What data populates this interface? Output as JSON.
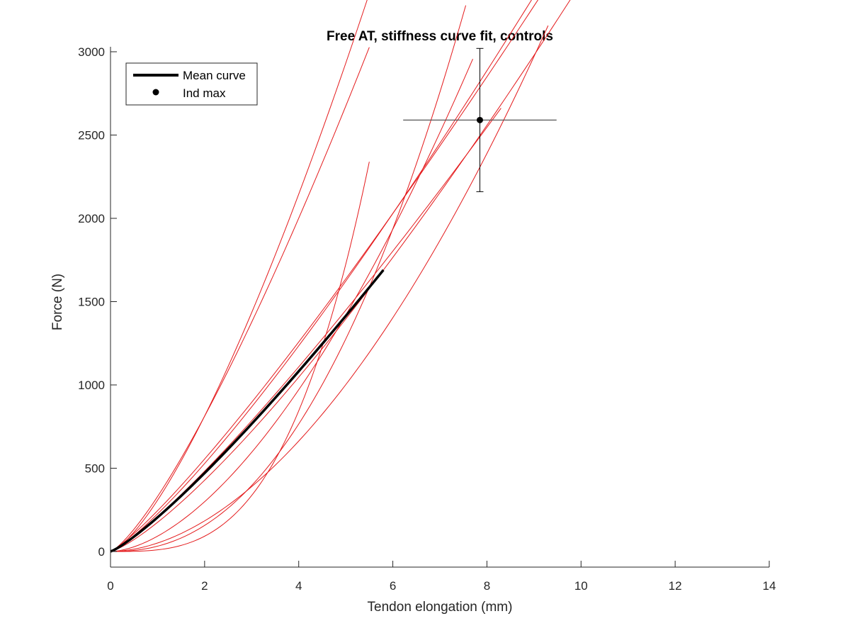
{
  "chart_data": {
    "type": "line",
    "title": "Free AT, stiffness curve fit, controls",
    "xlabel": "Tendon elongation (mm)",
    "ylabel": "Force (N)",
    "xlim": [
      0,
      14
    ],
    "ylim": [
      -100,
      3000
    ],
    "xticks": [
      "0",
      "2",
      "4",
      "6",
      "8",
      "10",
      "12",
      "14"
    ],
    "yticks": [
      "0",
      "500",
      "1000",
      "1500",
      "2000",
      "2500",
      "3000"
    ],
    "grid": false,
    "legend_position": "top-left",
    "legend": {
      "mean_label": "Mean curve",
      "max_label": "Ind max"
    },
    "colors": {
      "individual": "#e41a1c",
      "mean": "#000000",
      "errorbar": "#000000",
      "errorbar_h": "#555555",
      "axis": "#262626"
    },
    "individual_curves": [
      {
        "a": 32,
        "b": 2.29,
        "xmax": 7.55
      },
      {
        "a": 10,
        "b": 3.2,
        "xmax": 5.5
      },
      {
        "a": 330,
        "b": 1.3,
        "xmax": 5.5
      },
      {
        "a": 92,
        "b": 1.7,
        "xmax": 7.7
      },
      {
        "a": 245,
        "b": 1.18,
        "xmax": 9.6
      },
      {
        "a": 226,
        "b": 1.225,
        "xmax": 9.5
      },
      {
        "a": 175,
        "b": 1.29,
        "xmax": 10.15
      },
      {
        "a": 51,
        "b": 1.85,
        "xmax": 9.3
      },
      {
        "a": 308,
        "b": 1.4,
        "xmax": 7.65
      },
      {
        "a": 210,
        "b": 1.2,
        "xmax": 8.3
      }
    ],
    "mean_curve": {
      "a": 205,
      "b": 1.2,
      "xmax": 5.8
    },
    "ind_max": {
      "x": 7.85,
      "y": 2590,
      "x_err": [
        6.22,
        9.48
      ],
      "y_err": [
        2160,
        3020
      ]
    }
  }
}
